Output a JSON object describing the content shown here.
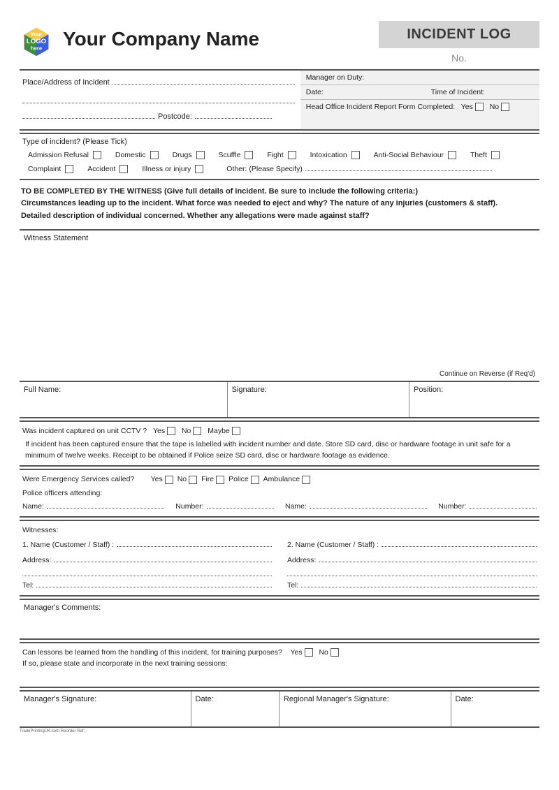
{
  "header": {
    "company": "Your Company Name",
    "badge": "INCIDENT LOG",
    "no": "No.",
    "logo": {
      "line1": "Your",
      "line2": "LOGO",
      "line3": "here"
    }
  },
  "sect1": {
    "place": "Place/Address of Incident",
    "postcode": "Postcode:",
    "manager": "Manager on Duty:",
    "date": "Date:",
    "time": "Time of Incident:",
    "hq": "Head Office Incident Report Form Completed:",
    "yes": "Yes",
    "no": "No"
  },
  "type": {
    "title": "Type of incident? (Please Tick)",
    "items1": [
      "Admission Refusal",
      "Domestic",
      "Drugs",
      "Scuffle",
      "Fight",
      "Intoxication",
      "Anti-Social Behaviour",
      "Theft"
    ],
    "items2": [
      "Complaint",
      "Accident",
      "Illness or injury"
    ],
    "other": "Other: (Please Specify)"
  },
  "instr": {
    "l1": "TO BE COMPLETED BY THE WITNESS (Give full details of incident. Be sure to include the following criteria:)",
    "l2": "Circumstances leading up to the incident. What force was needed to eject and why? The nature of any injuries (customers & staff).",
    "l3": "Detailed description of individual concerned. Whether any allegations were made against staff?"
  },
  "ws": {
    "title": "Witness Statement",
    "foot": "Continue on Reverse (if Req'd)"
  },
  "tri": {
    "a": "Full Name:",
    "b": "Signature:",
    "c": "Position:"
  },
  "cctv": {
    "q": "Was incident captured on unit CCTV ?",
    "yes": "Yes",
    "no": "No",
    "maybe": "Maybe",
    "note": "If incident has been captured ensure that the tape is labelled with incident number and date. Store SD card, disc or hardware footage in unit safe for a minimum of twelve weeks. Receipt to be obtained if Police seize SD card, disc or hardware footage as evidence."
  },
  "emg": {
    "q": "Were Emergency Services called?",
    "yes": "Yes",
    "no": "No",
    "fire": "Fire",
    "police": "Police",
    "amb": "Ambulance",
    "po": "Police officers attending:",
    "name": "Name:",
    "num": "Number:"
  },
  "wit": {
    "title": "Witnesses:",
    "n1": "1. Name (Customer / Staff) :",
    "n2": "2. Name (Customer / Staff) :",
    "addr": "Address:",
    "tel": "Tel:"
  },
  "mgr": {
    "title": "Manager's Comments:"
  },
  "lessons": {
    "q": "Can lessons be learned from the handling of this incident, for training purposes?",
    "yes": "Yes",
    "no": "No",
    "sub": "If so, please state and incorporate in the next training sessions:"
  },
  "sig": {
    "a": "Manager's Signature:",
    "b": "Date:",
    "c": "Regional Manager's Signature:",
    "d": "Date:"
  },
  "foot": "TradePrintingUK.com Reorder Ref:"
}
